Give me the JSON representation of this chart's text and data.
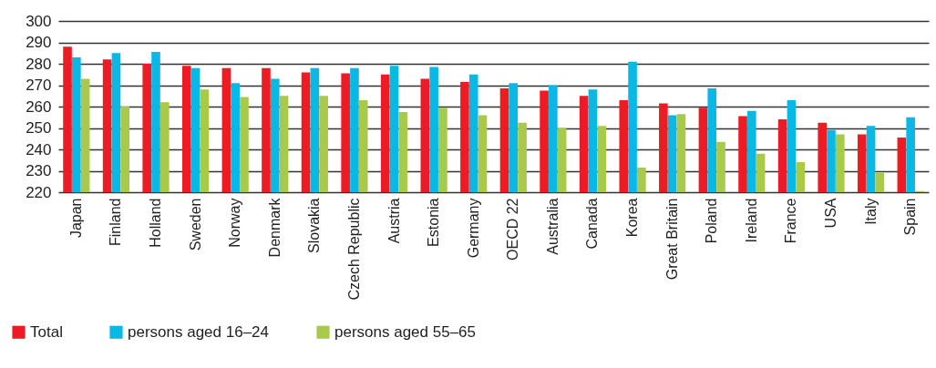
{
  "chart_data": {
    "type": "bar",
    "categories": [
      "Japan",
      "Finland",
      "Holland",
      "Sweden",
      "Norway",
      "Denmark",
      "Slovakia",
      "Czech Republic",
      "Austria",
      "Estonia",
      "Germany",
      "OECD 22",
      "Australia",
      "Canada",
      "Korea",
      "Great Britain",
      "Poland",
      "Ireland",
      "France",
      "USA",
      "Italy",
      "Spain"
    ],
    "series": [
      {
        "name": "Total",
        "color": "#ed1c24",
        "values": [
          288,
          282,
          280,
          279,
          278,
          278,
          276,
          275.5,
          275,
          273,
          271.5,
          268.5,
          267.5,
          265,
          263,
          261.5,
          259.5,
          255.5,
          254,
          252.5,
          247,
          245.5
        ]
      },
      {
        "name": "persons aged 16–24",
        "color": "#0ab8e6",
        "values": [
          283,
          285,
          285.5,
          278,
          271,
          273,
          278,
          278,
          279,
          278.5,
          275,
          271,
          270,
          268,
          281,
          256,
          268.5,
          258,
          263,
          249,
          251,
          255
        ]
      },
      {
        "name": "persons aged 55–65",
        "color": "#a8c94a",
        "values": [
          273,
          260,
          262,
          268,
          264.5,
          265,
          265,
          263,
          257.5,
          259.5,
          256,
          252.5,
          250,
          251,
          231.5,
          256.5,
          243.5,
          238,
          234,
          247,
          229,
          220.5
        ]
      }
    ],
    "ylim": [
      220,
      300
    ],
    "yticks": [
      220,
      230,
      240,
      250,
      260,
      270,
      280,
      290,
      300
    ],
    "grid": "y",
    "legend": "bottom"
  }
}
